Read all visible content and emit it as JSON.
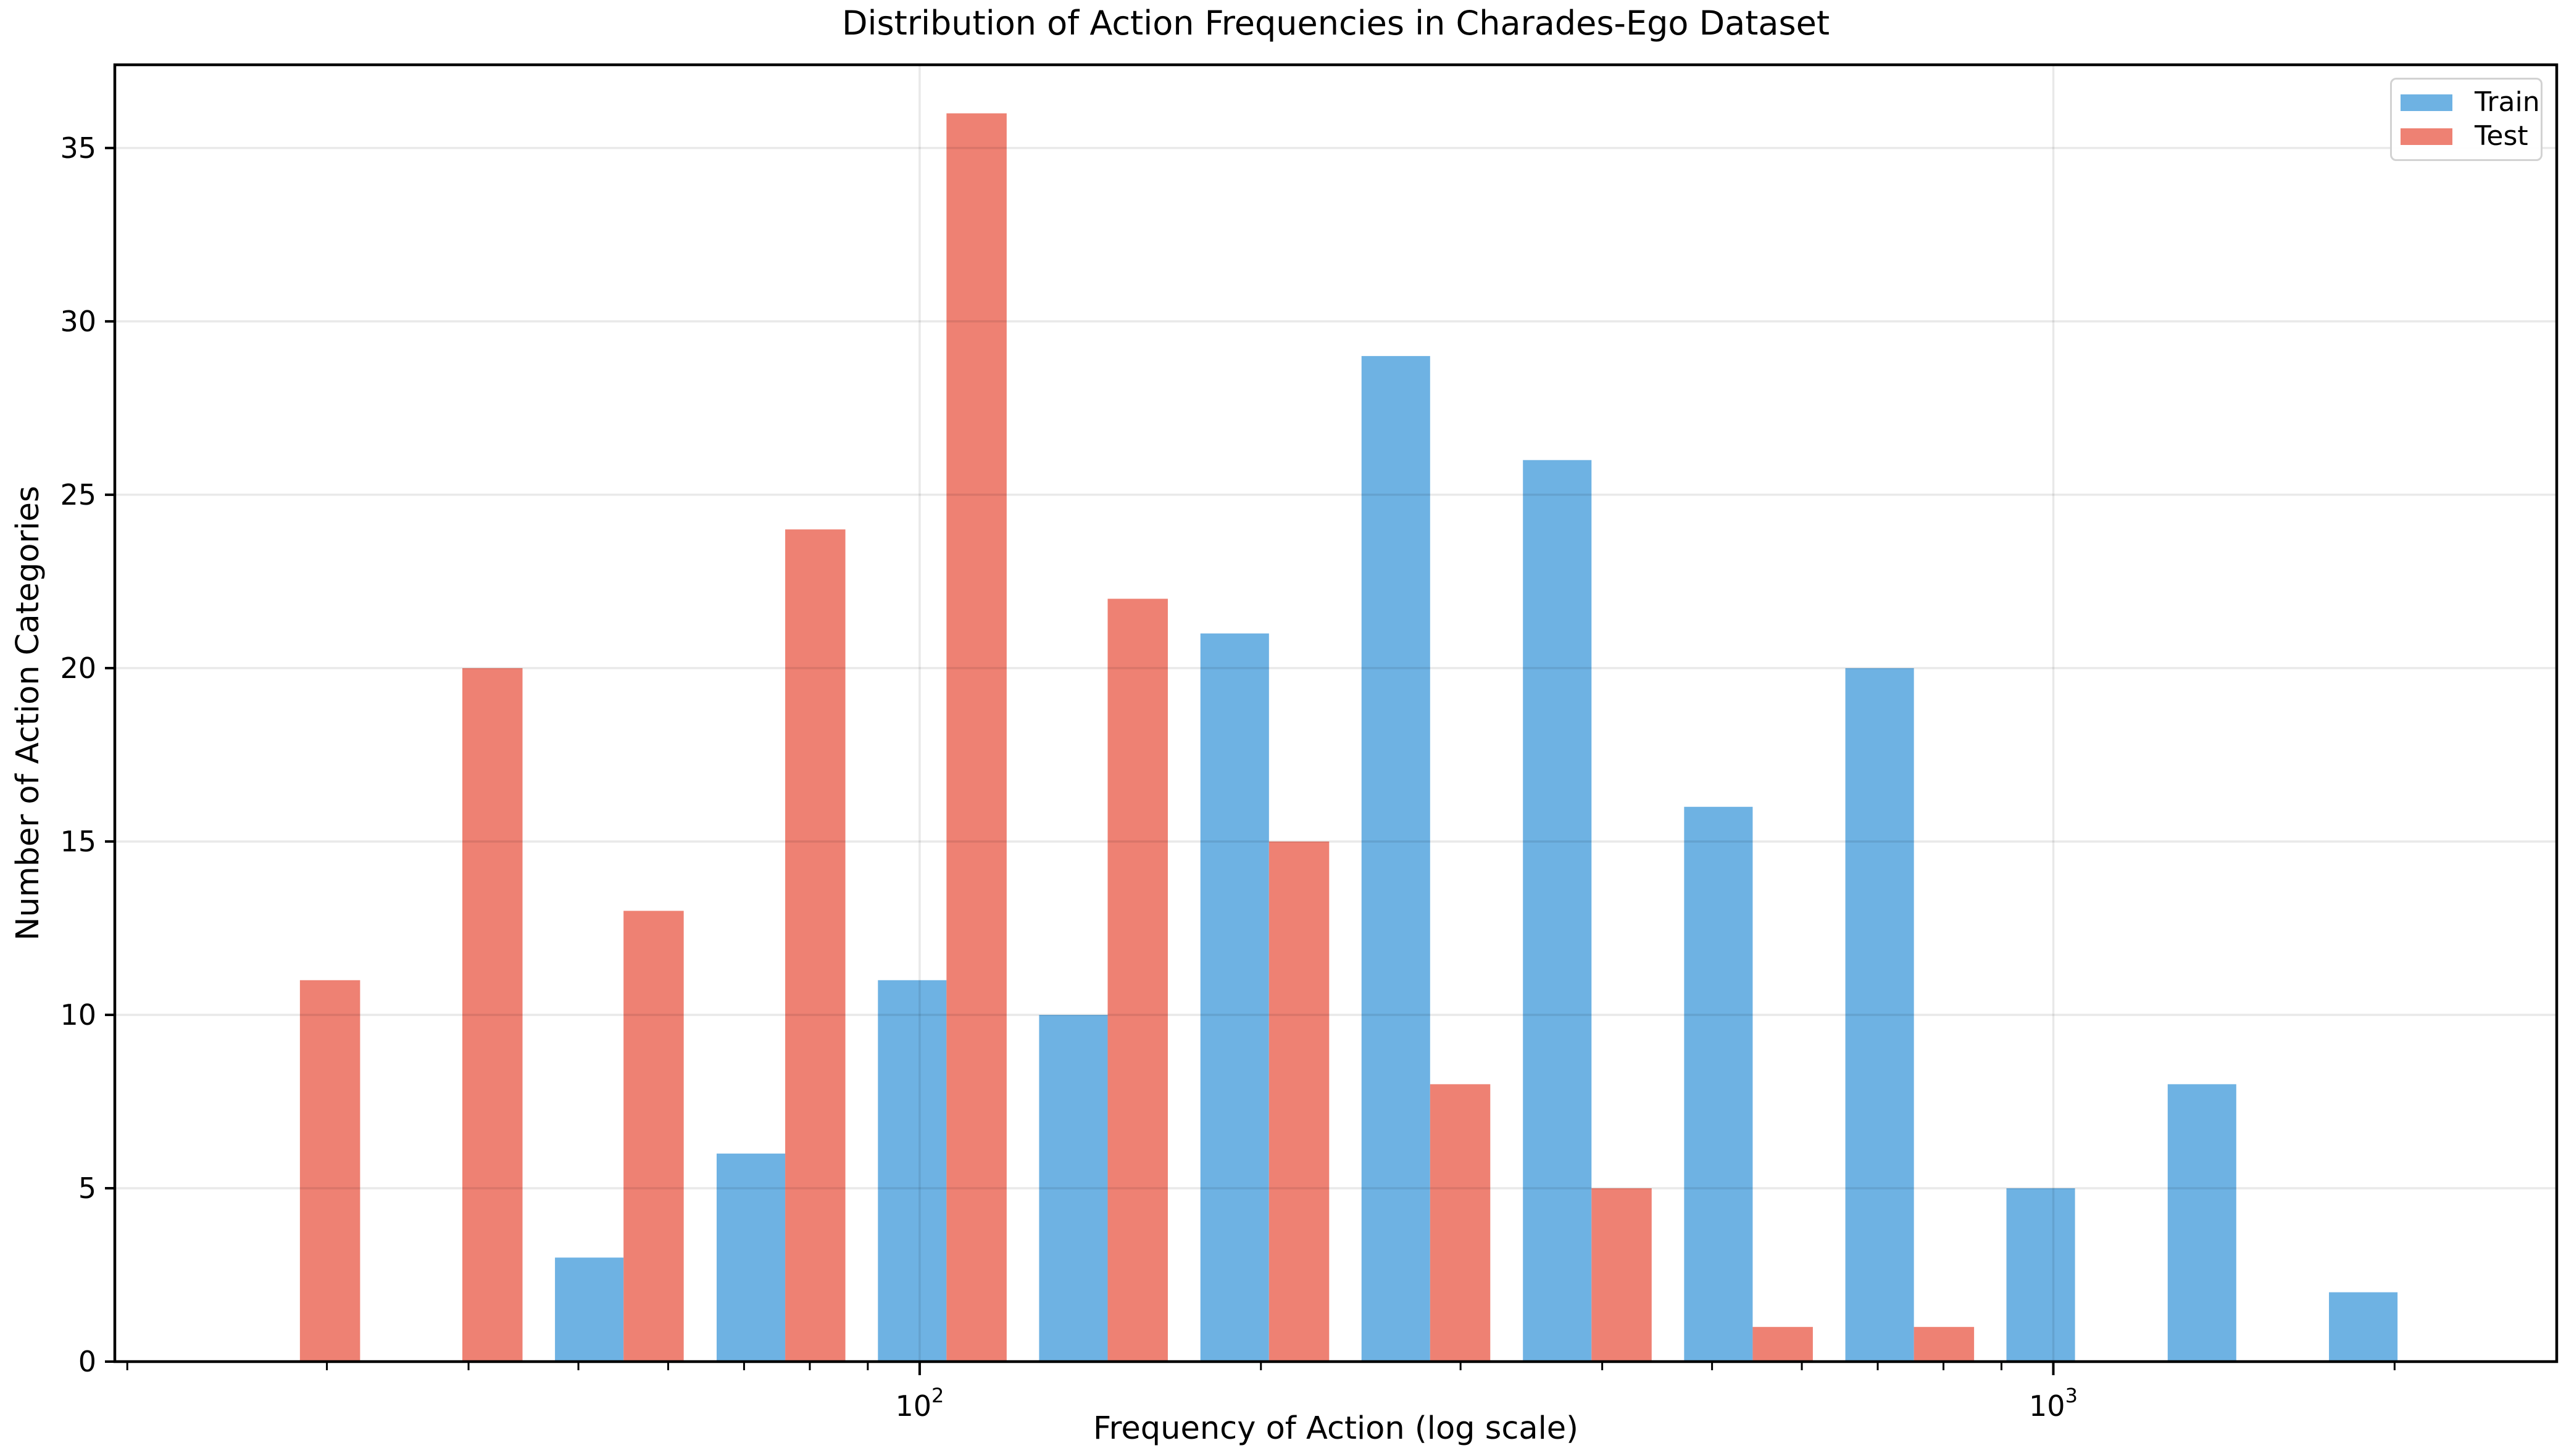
{
  "figure": {
    "title": "Distribution of Action Frequencies in Charades-Ego Dataset",
    "xlabel": "Frequency of Action (log scale)",
    "ylabel": "Number of Action Categories"
  },
  "chart_data": {
    "type": "bar",
    "title": "Distribution of Action Frequencies in Charades-Ego Dataset",
    "xlabel": "Frequency of Action (log scale)",
    "ylabel": "Number of Action Categories",
    "x_scale": "log",
    "grid": true,
    "legend_position": "upper right",
    "bin_centers": [
      28.4,
      39.5,
      54.8,
      76.1,
      105.6,
      146.5,
      203.3,
      282,
      391.4,
      543,
      753.4,
      1045,
      1450,
      2012
    ],
    "bar_half_width_fraction": 0.13,
    "series": [
      {
        "name": "Train",
        "color": "#6eb2e3",
        "values": [
          0,
          0,
          3,
          6,
          11,
          10,
          21,
          29,
          26,
          16,
          20,
          5,
          8,
          2
        ]
      },
      {
        "name": "Test",
        "color": "#ee8173",
        "values": [
          11,
          20,
          13,
          24,
          36,
          22,
          15,
          8,
          5,
          1,
          1,
          0,
          0,
          0
        ]
      }
    ],
    "xlim": [
      19.5,
      2780
    ],
    "ylim": [
      0,
      37.4
    ],
    "yticks": [
      0,
      5,
      10,
      15,
      20,
      25,
      30,
      35
    ],
    "x_major_ticks": [
      {
        "value": 100,
        "label_base": "10",
        "label_exp": "2"
      },
      {
        "value": 1000,
        "label_base": "10",
        "label_exp": "3"
      }
    ],
    "x_minor_ticks": [
      20,
      30,
      40,
      50,
      60,
      70,
      80,
      90,
      200,
      300,
      400,
      500,
      600,
      700,
      800,
      900,
      2000
    ],
    "colors": {
      "grid": "rgba(0,0,0,0.085)",
      "spine": "#000000",
      "legend_border": "#d2d2d2"
    }
  }
}
